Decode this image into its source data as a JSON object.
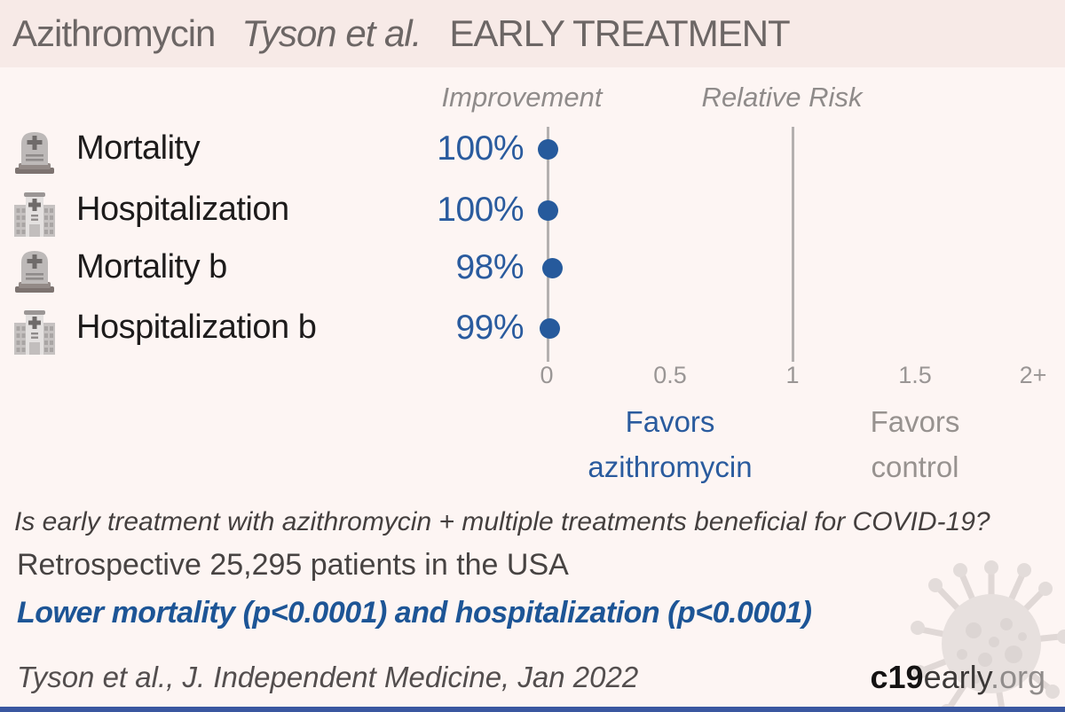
{
  "header": {
    "treatment": "Azithromycin",
    "study": "Tyson et al.",
    "stage": "EARLY TREATMENT"
  },
  "columns": {
    "improvement": "Improvement",
    "relative_risk": "Relative Risk"
  },
  "chart_data": {
    "type": "scatter",
    "subtype": "forest-plot",
    "categories": [
      "Mortality",
      "Hospitalization",
      "Mortality b",
      "Hospitalization b"
    ],
    "rows": [
      {
        "icon": "tombstone-icon",
        "label": "Mortality",
        "improvement": "100%",
        "rr": 0.0
      },
      {
        "icon": "hospital-icon",
        "label": "Hospitalization",
        "improvement": "100%",
        "rr": 0.0
      },
      {
        "icon": "tombstone-icon",
        "label": "Mortality b",
        "improvement": "98%",
        "rr": 0.02
      },
      {
        "icon": "hospital-icon",
        "label": "Hospitalization b",
        "improvement": "99%",
        "rr": 0.01
      }
    ],
    "improvement_values_pct": [
      100,
      100,
      98,
      99
    ],
    "relative_risk_values": [
      0.0,
      0.0,
      0.02,
      0.01
    ],
    "x_axis": {
      "label": "Relative Risk",
      "ticks": [
        "0",
        "0.5",
        "1",
        "1.5",
        "2+"
      ],
      "tick_values": [
        0,
        0.5,
        1,
        1.5,
        2
      ],
      "range": [
        0,
        2
      ],
      "reference_lines": [
        0,
        1
      ],
      "grid": false
    },
    "legend": {
      "favors_left_line1": "Favors",
      "favors_left_line2": "azithromycin",
      "favors_right_line1": "Favors",
      "favors_right_line2": "control"
    },
    "dot_color": "#265a9c",
    "line_color": "#b4b0af"
  },
  "summary": {
    "question": "Is early treatment with azithromycin + multiple treatments beneficial for COVID-19?",
    "study_info": "Retrospective 25,295 patients in the USA",
    "result": "Lower mortality (p<0.0001) and hospitalization (p<0.0001)"
  },
  "footer": {
    "citation": "Tyson et al., J. Independent Medicine, Jan 2022",
    "site_bold": "c19",
    "site_mid": "early",
    "site_suffix": ".org"
  },
  "colors": {
    "header_bg": "#f7eae7",
    "body_bg": "#fdf5f3",
    "accent_blue": "#2a5b9e",
    "result_blue": "#1d5596",
    "muted_gray": "#97928f",
    "bottom_bar": "#3a57a0"
  }
}
